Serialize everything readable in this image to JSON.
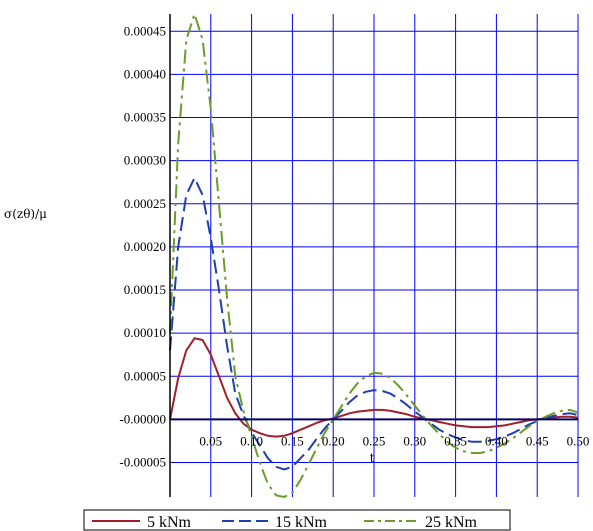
{
  "chart_data": {
    "type": "line",
    "title": "",
    "xlabel": "t",
    "ylabel": "σ(zθ)/μ",
    "xlim": [
      0,
      0.5
    ],
    "ylim": [
      -9e-05,
      0.00047
    ],
    "grid": true,
    "grid_color": "#0000ff",
    "legend_placement": "bottom",
    "x_ticks": [
      {
        "value": 0.05,
        "label": "0.05"
      },
      {
        "value": 0.1,
        "label": "0.10"
      },
      {
        "value": 0.15,
        "label": "0.15"
      },
      {
        "value": 0.2,
        "label": "0.20"
      },
      {
        "value": 0.25,
        "label": "0.25"
      },
      {
        "value": 0.3,
        "label": "0.30"
      },
      {
        "value": 0.35,
        "label": "0.35"
      },
      {
        "value": 0.4,
        "label": "0.40"
      },
      {
        "value": 0.45,
        "label": "0.45"
      },
      {
        "value": 0.5,
        "label": "0.50"
      }
    ],
    "y_ticks": [
      {
        "value": 0.00045,
        "label": "0.00045"
      },
      {
        "value": 0.0004,
        "label": "0.00040"
      },
      {
        "value": 0.00035,
        "label": "0.00035"
      },
      {
        "value": 0.0003,
        "label": "0.00030"
      },
      {
        "value": 0.00025,
        "label": "0.00025"
      },
      {
        "value": 0.0002,
        "label": "0.00020"
      },
      {
        "value": 0.00015,
        "label": "0.00015"
      },
      {
        "value": 0.0001,
        "label": "0.00010"
      },
      {
        "value": 5e-05,
        "label": "0.00005"
      },
      {
        "value": 0,
        "label": "-0.00000"
      },
      {
        "value": -5e-05,
        "label": "-0.00005"
      }
    ],
    "x": [
      0,
      0.01,
      0.02,
      0.03,
      0.04,
      0.05,
      0.06,
      0.07,
      0.08,
      0.09,
      0.1,
      0.11,
      0.12,
      0.13,
      0.14,
      0.15,
      0.16,
      0.17,
      0.18,
      0.19,
      0.2,
      0.21,
      0.22,
      0.23,
      0.24,
      0.25,
      0.26,
      0.27,
      0.28,
      0.29,
      0.3,
      0.31,
      0.32,
      0.33,
      0.34,
      0.35,
      0.36,
      0.37,
      0.38,
      0.39,
      0.4,
      0.41,
      0.42,
      0.43,
      0.44,
      0.45,
      0.46,
      0.47,
      0.48,
      0.49,
      0.5
    ],
    "series": [
      {
        "name": "5 kNm",
        "color": "#a0202a",
        "dash": "solid",
        "values": [
          0,
          4.8e-05,
          8e-05,
          9.4e-05,
          9.2e-05,
          7.5e-05,
          5e-05,
          2.5e-05,
          7e-06,
          -5e-06,
          -1.2e-05,
          -1.6e-05,
          -1.9e-05,
          -2e-05,
          -1.9e-05,
          -1.6e-05,
          -1.2e-05,
          -8e-06,
          -4e-06,
          -1e-06,
          1e-06,
          4e-06,
          7e-06,
          9e-06,
          1e-05,
          1.1e-05,
          1.1e-05,
          1e-05,
          8e-06,
          6e-06,
          3e-06,
          1e-06,
          -1e-06,
          -3e-06,
          -5e-06,
          -7e-06,
          -8e-06,
          -9e-06,
          -9e-06,
          -9e-06,
          -8e-06,
          -7e-06,
          -5e-06,
          -3e-06,
          -1e-06,
          0,
          1e-06,
          2e-06,
          3e-06,
          3e-06,
          2e-06
        ]
      },
      {
        "name": "15 kNm",
        "color": "#1f3fae",
        "dash": "long-dash",
        "values": [
          8e-05,
          0.0002,
          0.00026,
          0.00028,
          0.00026,
          0.00021,
          0.00015,
          8.5e-05,
          3e-05,
          5e-06,
          -1.5e-05,
          -3e-05,
          -4.5e-05,
          -5.5e-05,
          -5.8e-05,
          -5.5e-05,
          -4.5e-05,
          -3.5e-05,
          -2.2e-05,
          -1e-05,
          0,
          1e-05,
          2e-05,
          2.8e-05,
          3.2e-05,
          3.4e-05,
          3.3e-05,
          3e-05,
          2.4e-05,
          1.7e-05,
          9e-06,
          2e-06,
          -5e-06,
          -1.2e-05,
          -1.7e-05,
          -2.1e-05,
          -2.4e-05,
          -2.6e-05,
          -2.6e-05,
          -2.5e-05,
          -2.3e-05,
          -2e-05,
          -1.6e-05,
          -1.1e-05,
          -6e-06,
          -2e-06,
          1e-06,
          4e-06,
          6e-06,
          7e-06,
          5e-06
        ]
      },
      {
        "name": "25 kNm",
        "color": "#6a9c2a",
        "dash": "dash-dot",
        "values": [
          0.0001,
          0.00032,
          0.00044,
          0.00047,
          0.00044,
          0.00036,
          0.00025,
          0.00014,
          5e-05,
          1e-05,
          -2e-05,
          -5e-05,
          -7.5e-05,
          -8.8e-05,
          -9e-05,
          -8.5e-05,
          -7e-05,
          -5.2e-05,
          -3.3e-05,
          -1.5e-05,
          0,
          1.5e-05,
          3e-05,
          4.2e-05,
          5e-05,
          5.4e-05,
          5.3e-05,
          4.8e-05,
          3.9e-05,
          2.8e-05,
          1.6e-05,
          4e-06,
          -7e-06,
          -1.7e-05,
          -2.6e-05,
          -3.3e-05,
          -3.7e-05,
          -3.9e-05,
          -3.9e-05,
          -3.7e-05,
          -3.3e-05,
          -2.8e-05,
          -2.2e-05,
          -1.5e-05,
          -8e-06,
          -2e-06,
          3e-06,
          7e-06,
          1e-05,
          1.1e-05,
          8e-06
        ]
      }
    ]
  }
}
